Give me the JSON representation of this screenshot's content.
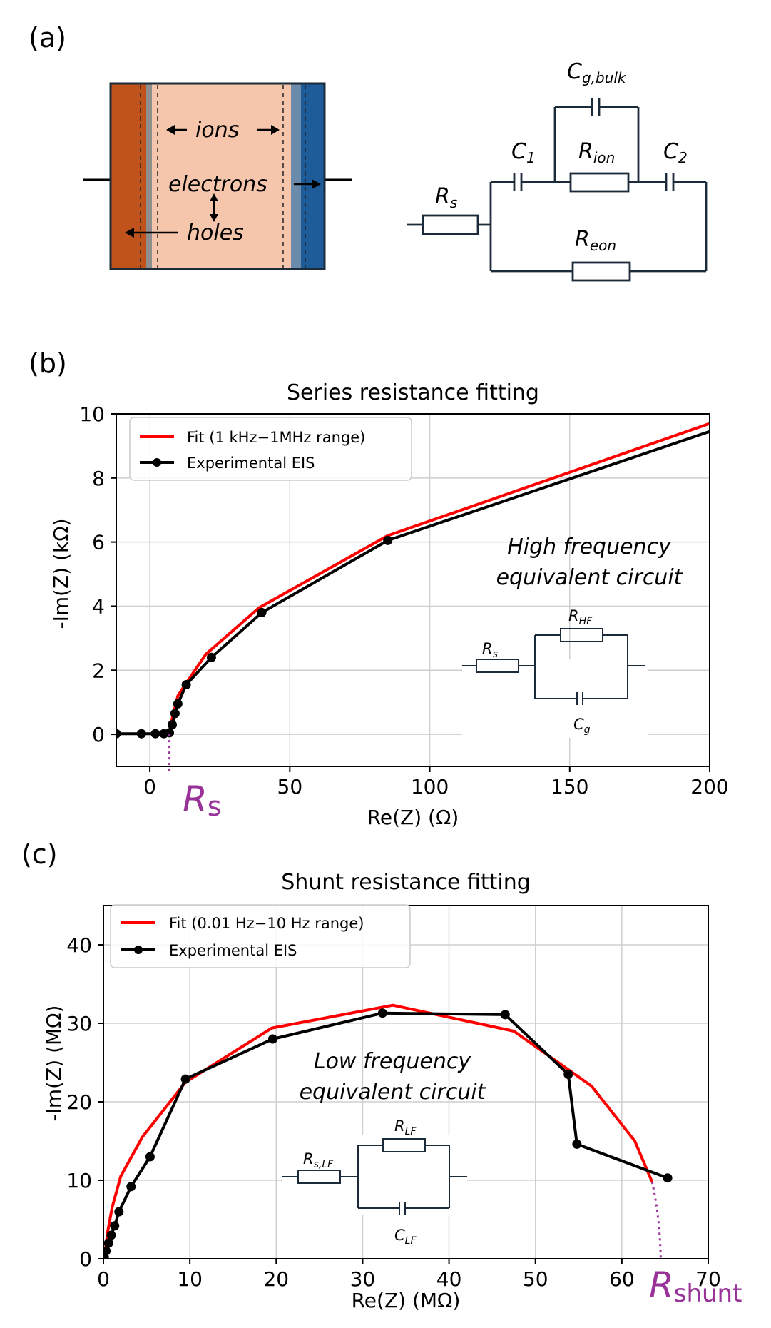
{
  "panels": {
    "a": "(a)",
    "b": "(b)",
    "c": "(c)"
  },
  "device": {
    "ions": "ions",
    "electrons": "electrons",
    "holes": "holes",
    "colors": {
      "left_electrode": "#c0531b",
      "perovskite": "#f5c6ab",
      "right_electrode": "#1e5b99",
      "interlayer_left": "#8e8e8e",
      "interlayer_right": "#6b8bad"
    }
  },
  "circuit_a": {
    "rs": {
      "main": "R",
      "sub": "s"
    },
    "c1": {
      "main": "C",
      "sub": "1"
    },
    "cg_bulk": {
      "main": "C",
      "sub": "g,bulk"
    },
    "rion": {
      "main": "R",
      "sub": "ion"
    },
    "c2": {
      "main": "C",
      "sub": "2"
    },
    "reon": {
      "main": "R",
      "sub": "eon"
    }
  },
  "chart_data": [
    {
      "type": "line",
      "title": "Series resistance fitting",
      "xlabel": "Re(Z) (Ω)",
      "ylabel": "-Im(Z) (kΩ)",
      "xlim": [
        -12,
        200
      ],
      "ylim": [
        -1,
        10
      ],
      "xticks": [
        0,
        50,
        100,
        150,
        200
      ],
      "yticks": [
        0,
        2,
        4,
        6,
        8,
        10
      ],
      "grid": true,
      "legend_position": "top-left",
      "series": [
        {
          "name": "Fit (1 kHz−1MHz range)",
          "color": "#ff0000",
          "marker": "none",
          "x": [
            7.0,
            8.0,
            10.0,
            13.0,
            20.0,
            39.0,
            85.0,
            200.0
          ],
          "y": [
            0.05,
            0.5,
            1.2,
            1.6,
            2.5,
            3.95,
            6.2,
            9.7
          ]
        },
        {
          "name": "Experimental EIS",
          "color": "#000000",
          "marker": "circle",
          "x": [
            -12.0,
            -3.0,
            2.0,
            5.0,
            7.0,
            8.0,
            9.0,
            10.0,
            13.0,
            22.0,
            40.0,
            85.0,
            200.0
          ],
          "y": [
            0.02,
            0.02,
            0.02,
            0.02,
            0.05,
            0.3,
            0.65,
            0.95,
            1.55,
            2.4,
            3.8,
            6.05,
            9.45
          ],
          "marker_points": 12
        }
      ],
      "annotation": {
        "line1": "High frequency",
        "line2": "equivalent circuit"
      },
      "inset_labels": {
        "rs_main": "R",
        "rs_sub": "s",
        "r_main": "R",
        "r_sub": "HF",
        "c_main": "C",
        "c_sub": "g"
      },
      "marker_label": {
        "main": "R",
        "sub": "s",
        "x": 7.0
      }
    },
    {
      "type": "line",
      "title": "Shunt resistance fitting",
      "xlabel": "Re(Z) (MΩ)",
      "ylabel": "-Im(Z) (MΩ)",
      "xlim": [
        0,
        70
      ],
      "ylim": [
        0,
        45
      ],
      "xticks": [
        0,
        10,
        20,
        30,
        40,
        50,
        60,
        70
      ],
      "yticks": [
        0,
        10,
        20,
        30,
        40
      ],
      "grid": true,
      "legend_position": "top-left",
      "series": [
        {
          "name": "Fit (0.01 Hz−10 Hz range)",
          "color": "#ff0000",
          "marker": "none",
          "x": [
            0.1,
            0.5,
            1.0,
            2.0,
            4.5,
            9.5,
            19.5,
            33.5,
            47.5,
            56.5,
            61.5,
            63.5
          ],
          "y": [
            0.1,
            3.5,
            6.5,
            10.5,
            15.5,
            22.5,
            29.4,
            32.3,
            29.0,
            22.0,
            15.0,
            9.8
          ]
        },
        {
          "name": "Experimental EIS",
          "color": "#000000",
          "marker": "circle",
          "x": [
            0.1,
            0.3,
            0.6,
            0.9,
            1.3,
            1.8,
            3.2,
            5.4,
            9.5,
            19.6,
            32.3,
            46.5,
            53.8,
            54.8,
            65.3
          ],
          "y": [
            0.2,
            1.0,
            2.0,
            3.0,
            4.2,
            6.0,
            9.2,
            13.0,
            22.9,
            28.0,
            31.3,
            31.1,
            23.5,
            14.6,
            10.3
          ]
        }
      ],
      "annotation": {
        "line1": "Low frequency",
        "line2": "equivalent circuit"
      },
      "inset_labels": {
        "rs_main": "R",
        "rs_sub": "s,LF",
        "r_main": "R",
        "r_sub": "LF",
        "c_main": "C",
        "c_sub": "LF"
      },
      "marker_label": {
        "main": "R",
        "sub": "shunt",
        "x": 64.5
      }
    }
  ]
}
